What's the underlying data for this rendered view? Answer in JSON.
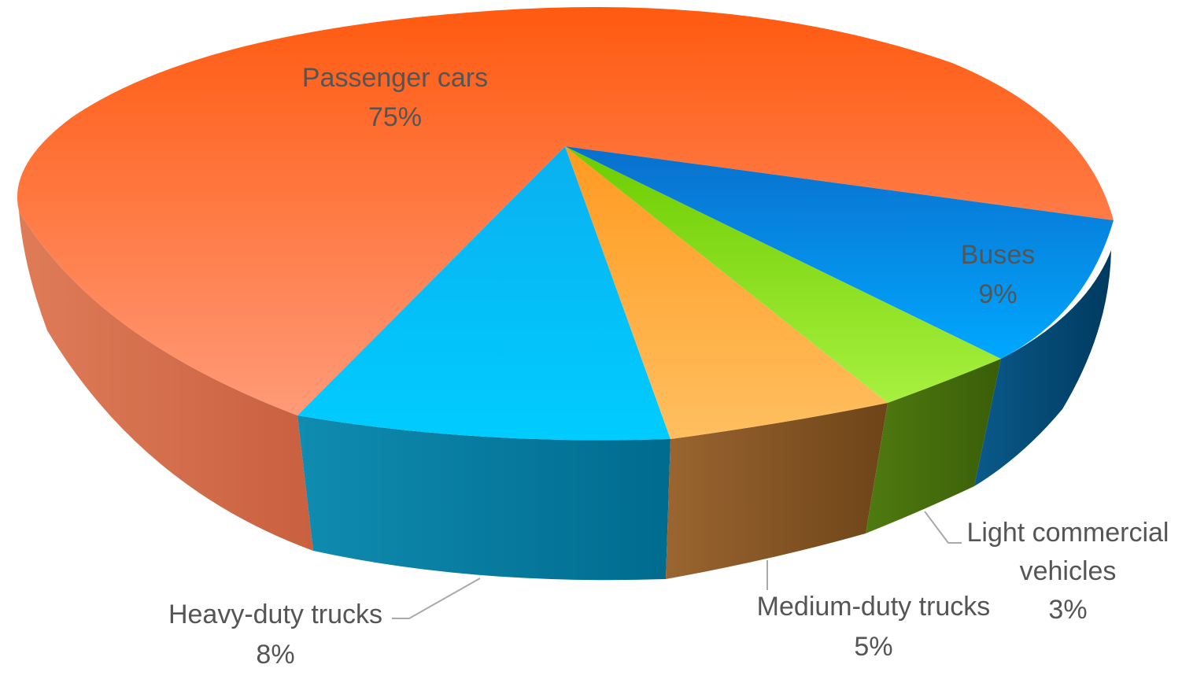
{
  "chart_data": {
    "type": "pie",
    "style": "3d",
    "slices": [
      {
        "label": "Passenger cars",
        "value": 75,
        "value_label": "75%",
        "color": "#ff7a45"
      },
      {
        "label": "Heavy-duty trucks",
        "value": 8,
        "value_label": "8%",
        "color": "#00bff0"
      },
      {
        "label": "Medium-duty trucks",
        "value": 5,
        "value_label": "5%",
        "color": "#ffb347"
      },
      {
        "label": "Light commercial vehicles",
        "label_lines": [
          "Light commercial",
          "vehicles"
        ],
        "value": 3,
        "value_label": "3%",
        "color": "#8fe020"
      },
      {
        "label": "Buses",
        "value": 9,
        "value_label": "9%",
        "color": "#0a8fe0"
      }
    ]
  }
}
